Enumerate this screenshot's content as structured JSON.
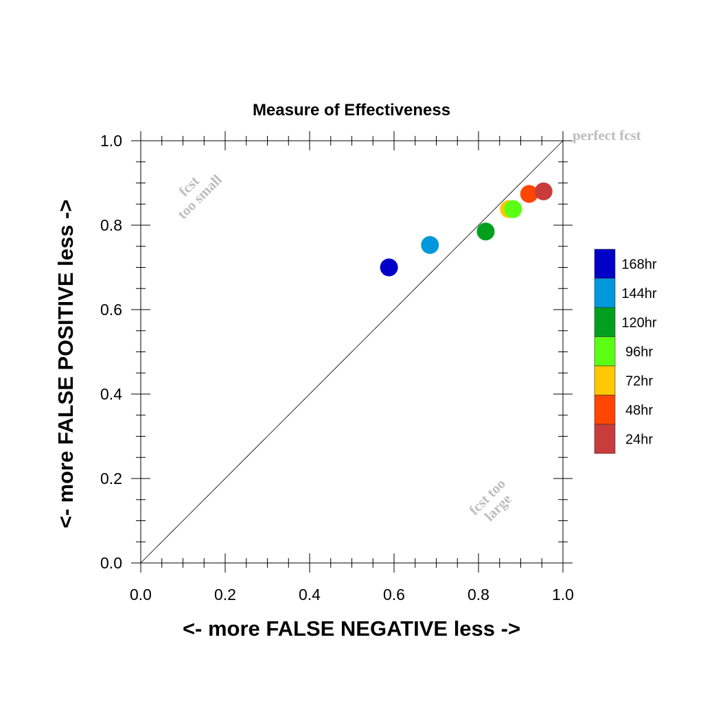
{
  "chart_data": {
    "type": "scatter",
    "title": "Measure of Effectiveness",
    "xlabel": "<- more   FALSE NEGATIVE   less ->",
    "ylabel": "<- more   FALSE POSITIVE   less ->",
    "xlim": [
      0,
      1
    ],
    "ylim": [
      0,
      1
    ],
    "x_ticks": [
      "0.0",
      "0.2",
      "0.4",
      "0.6",
      "0.8",
      "1.0"
    ],
    "y_ticks": [
      "0.0",
      "0.2",
      "0.4",
      "0.6",
      "0.8",
      "1.0"
    ],
    "grid": false,
    "diagonal_line": true,
    "annotations": {
      "perfect": "perfect fcst",
      "too_small_line1": "fcst",
      "too_small_line2": "too small",
      "too_large_line1": "fcst too",
      "too_large_line2": "large"
    },
    "legend_position": "right",
    "series": [
      {
        "name": "168hr",
        "color": "#0000c8",
        "x": 0.588,
        "y": 0.7
      },
      {
        "name": "144hr",
        "color": "#0098dc",
        "x": 0.685,
        "y": 0.753
      },
      {
        "name": "120hr",
        "color": "#00a01e",
        "x": 0.817,
        "y": 0.785
      },
      {
        "name": "96hr",
        "color": "#5aff14",
        "x": 0.882,
        "y": 0.838
      },
      {
        "name": "72hr",
        "color": "#ffc800",
        "x": 0.872,
        "y": 0.838
      },
      {
        "name": "48hr",
        "color": "#ff4600",
        "x": 0.92,
        "y": 0.874
      },
      {
        "name": "24hr",
        "color": "#c83c3c",
        "x": 0.954,
        "y": 0.88
      }
    ]
  }
}
